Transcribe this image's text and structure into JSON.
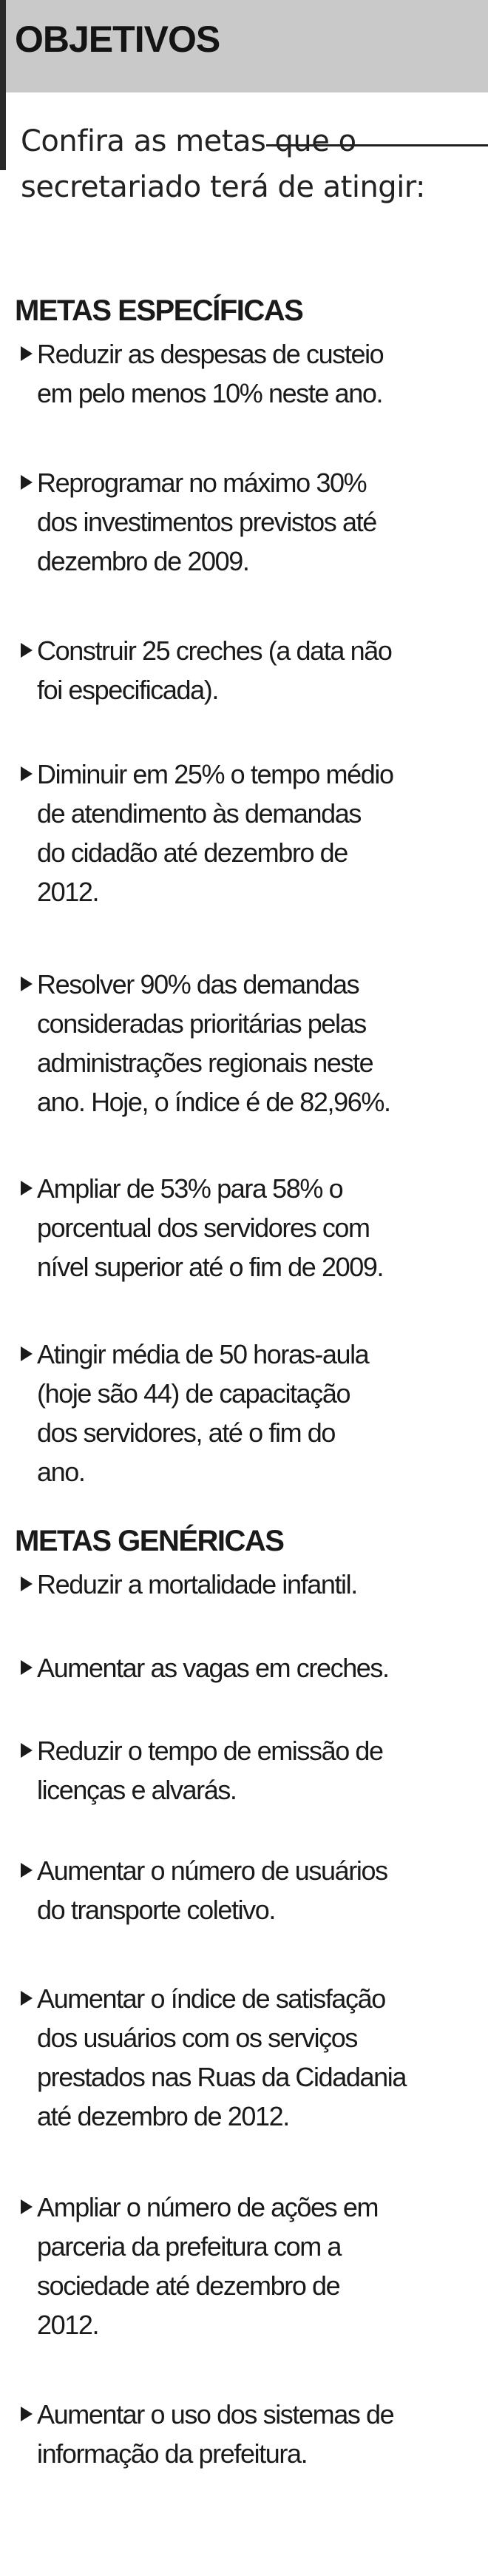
{
  "header": {
    "title": "OBJETIVOS"
  },
  "intro": {
    "text": "Confira as metas que o secretariado terá de atingir:"
  },
  "specific": {
    "title": "METAS ESPECÍFICAS",
    "items": [
      {
        "label": "Reduzir as despesas de custeio\nem pelo menos 10% neste ano."
      },
      {
        "label": "Reprogramar no máximo 30%\ndos investimentos previstos até\ndezembro de 2009."
      },
      {
        "label": "Construir 25 creches (a data não\nfoi especificada)."
      },
      {
        "label": "Diminuir em 25% o tempo médio\nde atendimento às demandas\ndo cidadão até dezembro de\n2012."
      },
      {
        "label": "Resolver 90% das demandas\nconsideradas prioritárias pelas\nadministrações regionais neste\nano. Hoje, o índice é de 82,96%."
      },
      {
        "label": "Ampliar de 53% para 58% o\nporcentual dos servidores com\nnível superior até o fim de 2009."
      },
      {
        "label": "Atingir média  de 50 horas-aula\n(hoje são 44) de capacitação\ndos servidores, até o fim do\nano."
      }
    ]
  },
  "generic": {
    "title": "METAS GENÉRICAS",
    "items": [
      {
        "label": "Reduzir a mortalidade infantil."
      },
      {
        "label": "Aumentar as vagas em creches."
      },
      {
        "label": "Reduzir o tempo de emissão de\nlicenças e alvarás."
      },
      {
        "label": "Aumentar o número de usuários\ndo transporte coletivo."
      },
      {
        "label": "Aumentar o índice de satisfação\ndos usuários com os serviços\nprestados nas Ruas da Cidadania\naté dezembro de 2012."
      },
      {
        "label": "Ampliar o número de ações em\nparceria da prefeitura com a\nsociedade até dezembro de\n2012."
      },
      {
        "label": "Aumentar o uso dos sistemas de\ninformação da prefeitura."
      }
    ]
  }
}
